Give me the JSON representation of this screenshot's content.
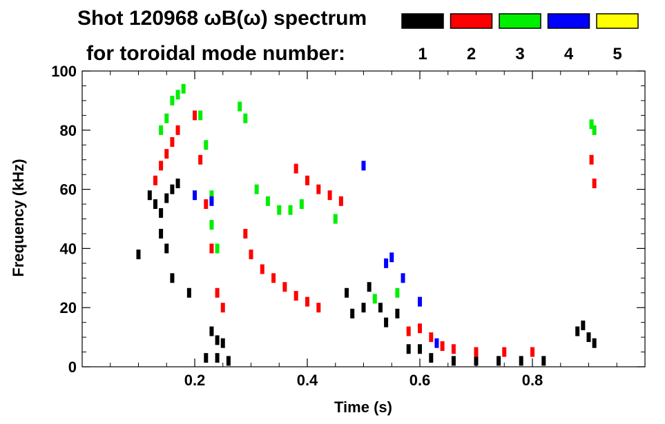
{
  "chart_data": {
    "type": "scatter",
    "title_line1": "Shot 120968 ωB(ω) spectrum",
    "title_line2": "for toroidal mode number:",
    "xlabel": "Time (s)",
    "ylabel": "Frequency (kHz)",
    "xlim": [
      0.0,
      1.0
    ],
    "ylim": [
      0,
      100
    ],
    "x_ticks": [
      0.2,
      0.4,
      0.6,
      0.8
    ],
    "x_tick_labels": [
      "0.2",
      "0.4",
      "0.6",
      "0.8"
    ],
    "y_ticks": [
      0,
      20,
      40,
      60,
      80,
      100
    ],
    "y_tick_labels": [
      "0",
      "20",
      "40",
      "60",
      "80",
      "100"
    ],
    "legend": [
      {
        "name": "1",
        "color": "#000000"
      },
      {
        "name": "2",
        "color": "#ff0000"
      },
      {
        "name": "3",
        "color": "#00ee00"
      },
      {
        "name": "4",
        "color": "#0000ff"
      },
      {
        "name": "5",
        "color": "#ffff00"
      }
    ],
    "series": [
      {
        "name": "1",
        "color": "#000000",
        "points": [
          [
            0.1,
            38
          ],
          [
            0.12,
            58
          ],
          [
            0.13,
            55
          ],
          [
            0.14,
            52
          ],
          [
            0.15,
            57
          ],
          [
            0.16,
            60
          ],
          [
            0.17,
            62
          ],
          [
            0.14,
            45
          ],
          [
            0.15,
            40
          ],
          [
            0.16,
            30
          ],
          [
            0.19,
            25
          ],
          [
            0.23,
            12
          ],
          [
            0.24,
            9
          ],
          [
            0.25,
            8
          ],
          [
            0.22,
            3
          ],
          [
            0.24,
            3
          ],
          [
            0.26,
            2
          ],
          [
            0.47,
            25
          ],
          [
            0.48,
            18
          ],
          [
            0.5,
            20
          ],
          [
            0.51,
            27
          ],
          [
            0.53,
            20
          ],
          [
            0.54,
            15
          ],
          [
            0.56,
            18
          ],
          [
            0.58,
            6
          ],
          [
            0.6,
            6
          ],
          [
            0.62,
            3
          ],
          [
            0.66,
            2
          ],
          [
            0.7,
            2
          ],
          [
            0.74,
            2
          ],
          [
            0.78,
            2
          ],
          [
            0.82,
            2
          ],
          [
            0.88,
            12
          ],
          [
            0.89,
            14
          ],
          [
            0.9,
            10
          ],
          [
            0.91,
            8
          ]
        ]
      },
      {
        "name": "2",
        "color": "#ff0000",
        "points": [
          [
            0.13,
            63
          ],
          [
            0.14,
            68
          ],
          [
            0.15,
            72
          ],
          [
            0.16,
            76
          ],
          [
            0.17,
            80
          ],
          [
            0.2,
            85
          ],
          [
            0.21,
            70
          ],
          [
            0.22,
            55
          ],
          [
            0.23,
            40
          ],
          [
            0.24,
            25
          ],
          [
            0.25,
            20
          ],
          [
            0.29,
            45
          ],
          [
            0.3,
            38
          ],
          [
            0.32,
            33
          ],
          [
            0.34,
            30
          ],
          [
            0.36,
            27
          ],
          [
            0.38,
            24
          ],
          [
            0.4,
            22
          ],
          [
            0.42,
            20
          ],
          [
            0.38,
            67
          ],
          [
            0.4,
            63
          ],
          [
            0.42,
            60
          ],
          [
            0.44,
            58
          ],
          [
            0.46,
            56
          ],
          [
            0.58,
            12
          ],
          [
            0.6,
            13
          ],
          [
            0.62,
            10
          ],
          [
            0.64,
            7
          ],
          [
            0.66,
            6
          ],
          [
            0.7,
            5
          ],
          [
            0.75,
            5
          ],
          [
            0.8,
            5
          ],
          [
            0.905,
            70
          ],
          [
            0.91,
            62
          ]
        ]
      },
      {
        "name": "3",
        "color": "#00ee00",
        "points": [
          [
            0.14,
            80
          ],
          [
            0.15,
            84
          ],
          [
            0.16,
            90
          ],
          [
            0.17,
            92
          ],
          [
            0.18,
            94
          ],
          [
            0.21,
            85
          ],
          [
            0.22,
            75
          ],
          [
            0.23,
            58
          ],
          [
            0.23,
            48
          ],
          [
            0.24,
            40
          ],
          [
            0.28,
            88
          ],
          [
            0.29,
            84
          ],
          [
            0.31,
            60
          ],
          [
            0.33,
            56
          ],
          [
            0.35,
            53
          ],
          [
            0.37,
            53
          ],
          [
            0.39,
            55
          ],
          [
            0.45,
            50
          ],
          [
            0.52,
            23
          ],
          [
            0.56,
            25
          ],
          [
            0.905,
            82
          ],
          [
            0.91,
            80
          ]
        ]
      },
      {
        "name": "4",
        "color": "#0000ff",
        "points": [
          [
            0.2,
            58
          ],
          [
            0.23,
            56
          ],
          [
            0.5,
            68
          ],
          [
            0.54,
            35
          ],
          [
            0.55,
            37
          ],
          [
            0.57,
            30
          ],
          [
            0.6,
            22
          ],
          [
            0.63,
            8
          ]
        ]
      },
      {
        "name": "5",
        "color": "#ffff00",
        "points": []
      }
    ]
  }
}
